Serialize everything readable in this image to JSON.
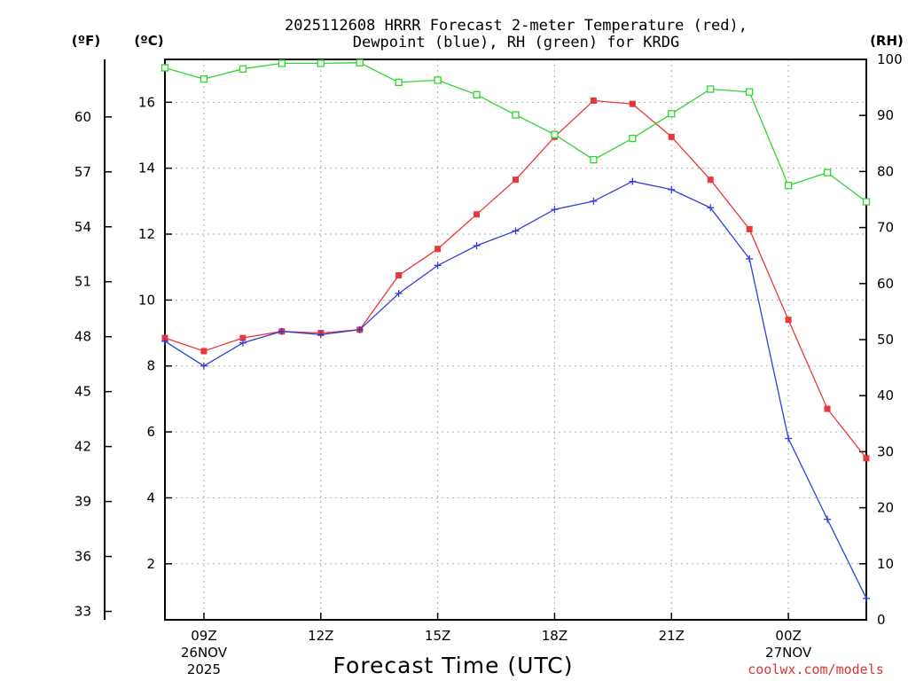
{
  "title_line1": "2025112608 HRRR Forecast 2-meter Temperature (red),",
  "title_line2": "Dewpoint (blue), RH (green) for KRDG",
  "unit_f": "(ºF)",
  "unit_c": "(ºC)",
  "unit_rh": "(RH)",
  "xlabel": "Forecast Time (UTC)",
  "credit": "coolwx.com/models",
  "colors": {
    "temperature": "#e8373a",
    "dewpoint": "#2f3fd8",
    "rh": "#2ed62e",
    "credit": "#e0342f"
  },
  "chart_data": {
    "type": "line",
    "x": [
      8,
      9,
      10,
      11,
      12,
      13,
      14,
      15,
      16,
      17,
      18,
      19,
      20,
      21,
      22,
      23,
      24,
      25,
      26
    ],
    "x_ticks": [
      {
        "x": 9,
        "label": "09Z",
        "sub1": "26NOV",
        "sub2": "2025"
      },
      {
        "x": 12,
        "label": "12Z",
        "sub1": "",
        "sub2": ""
      },
      {
        "x": 15,
        "label": "15Z",
        "sub1": "",
        "sub2": ""
      },
      {
        "x": 18,
        "label": "18Z",
        "sub1": "",
        "sub2": ""
      },
      {
        "x": 21,
        "label": "21Z",
        "sub1": "",
        "sub2": ""
      },
      {
        "x": 24,
        "label": "00Z",
        "sub1": "27NOV",
        "sub2": ""
      }
    ],
    "xlim": [
      8,
      26
    ],
    "ylim_c": [
      0.3,
      17.3
    ],
    "ylim_rh": [
      0,
      100
    ],
    "y_ticks_c": [
      "2",
      "4",
      "6",
      "8",
      "10",
      "12",
      "14",
      "16"
    ],
    "y_ticks_f": [
      "33",
      "36",
      "39",
      "42",
      "45",
      "48",
      "51",
      "54",
      "57",
      "60"
    ],
    "y_ticks_rh": [
      "0",
      "10",
      "20",
      "30",
      "40",
      "50",
      "60",
      "70",
      "80",
      "90",
      "100"
    ],
    "series": [
      {
        "name": "Temperature",
        "unit": "C",
        "marker": "filled-square",
        "values": [
          8.85,
          8.45,
          8.85,
          9.05,
          9.0,
          9.1,
          10.75,
          11.55,
          12.6,
          13.65,
          14.95,
          16.05,
          15.95,
          14.95,
          13.65,
          12.15,
          9.4,
          6.7,
          5.2
        ]
      },
      {
        "name": "Dewpoint",
        "unit": "C",
        "marker": "plus",
        "values": [
          8.75,
          8.0,
          8.7,
          9.05,
          8.95,
          9.1,
          10.2,
          11.05,
          11.65,
          12.1,
          12.75,
          13.0,
          13.6,
          13.35,
          12.8,
          11.25,
          5.8,
          3.35,
          0.95
        ]
      },
      {
        "name": "RH",
        "unit": "%",
        "marker": "open-square",
        "values": [
          98.5,
          96.5,
          98.3,
          99.3,
          99.3,
          99.4,
          95.9,
          96.3,
          93.7,
          90.1,
          86.6,
          82.1,
          85.9,
          90.3,
          94.7,
          94.2,
          77.5,
          79.8,
          74.6
        ]
      }
    ]
  }
}
